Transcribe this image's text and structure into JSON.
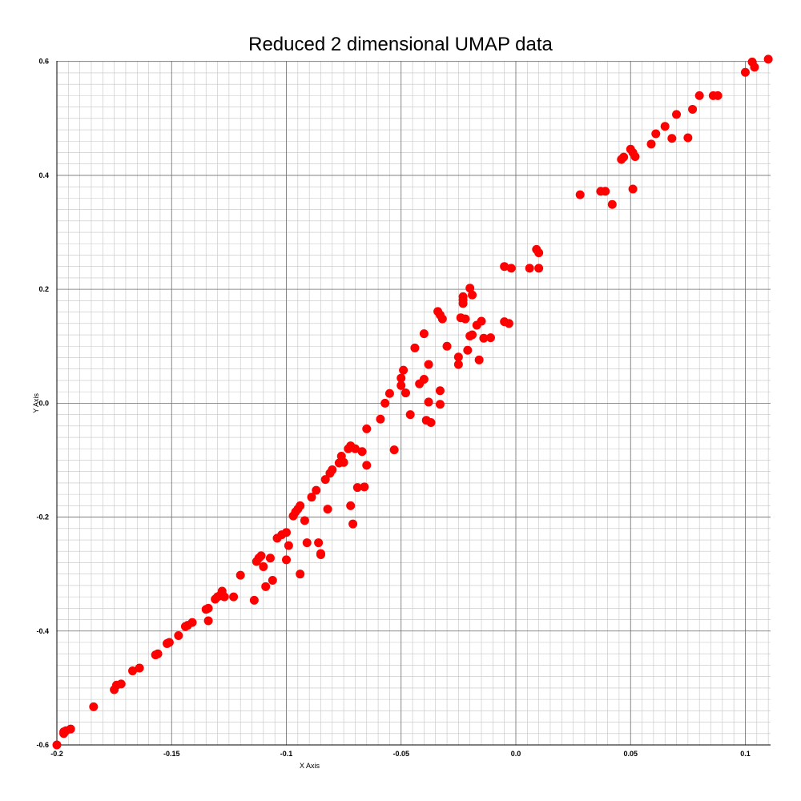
{
  "chart_data": {
    "type": "scatter",
    "title": "Reduced 2 dimensional UMAP data",
    "xlabel": "X Axis",
    "ylabel": "Y Axis",
    "xlim": [
      -0.2,
      0.111
    ],
    "ylim": [
      -0.6,
      0.601
    ],
    "x_ticks": [
      -0.2,
      -0.15,
      -0.1,
      -0.05,
      0.0,
      0.05,
      0.1
    ],
    "x_tick_labels": [
      "-0.2",
      "-0.15",
      "-0.1",
      "-0.05",
      "0.0",
      "0.05",
      "0.1"
    ],
    "y_ticks": [
      -0.6,
      -0.4,
      -0.2,
      0.0,
      0.2,
      0.4,
      0.6
    ],
    "y_tick_labels": [
      "-0.6",
      "-0.4",
      "-0.2",
      "0.0",
      "0.2",
      "0.4",
      "0.6"
    ],
    "grid": true,
    "marker_color": "#ff0000",
    "series": [
      {
        "x": [
          -0.2,
          -0.197,
          -0.197,
          -0.196,
          -0.194,
          -0.184,
          -0.175,
          -0.174,
          -0.172,
          -0.167,
          -0.164,
          -0.157,
          -0.156,
          -0.152,
          -0.151,
          -0.147,
          -0.144,
          -0.143,
          -0.141,
          -0.135,
          -0.134,
          -0.134,
          -0.131,
          -0.13,
          -0.129,
          -0.128,
          -0.127,
          -0.123,
          -0.12,
          -0.114,
          -0.113,
          -0.112,
          -0.111,
          -0.11,
          -0.109,
          -0.107,
          -0.106,
          -0.104,
          -0.102,
          -0.1,
          -0.1,
          -0.099,
          -0.097,
          -0.096,
          -0.095,
          -0.094,
          -0.094,
          -0.092,
          -0.091,
          -0.089,
          -0.087,
          -0.086,
          -0.085,
          -0.085,
          -0.083,
          -0.082,
          -0.081,
          -0.08,
          -0.077,
          -0.076,
          -0.075,
          -0.073,
          -0.072,
          -0.072,
          -0.071,
          -0.07,
          -0.069,
          -0.067,
          -0.066,
          -0.065,
          -0.065,
          -0.059,
          -0.057,
          -0.055,
          -0.053,
          -0.05,
          -0.05,
          -0.049,
          -0.048,
          -0.046,
          -0.044,
          -0.042,
          -0.04,
          -0.04,
          -0.039,
          -0.038,
          -0.038,
          -0.037,
          -0.034,
          -0.033,
          -0.033,
          -0.033,
          -0.032,
          -0.03,
          -0.025,
          -0.025,
          -0.024,
          -0.023,
          -0.023,
          -0.023,
          -0.022,
          -0.021,
          -0.02,
          -0.02,
          -0.019,
          -0.019,
          -0.017,
          -0.016,
          -0.015,
          -0.014,
          -0.011,
          -0.005,
          -0.005,
          -0.003,
          -0.002,
          0.006,
          0.009,
          0.01,
          0.01,
          0.028,
          0.037,
          0.039,
          0.042,
          0.046,
          0.047,
          0.05,
          0.051,
          0.051,
          0.052,
          0.059,
          0.061,
          0.065,
          0.068,
          0.07,
          0.075,
          0.077,
          0.08,
          0.086,
          0.088,
          0.1,
          0.103,
          0.104,
          0.11
        ],
        "y": [
          -0.6,
          -0.58,
          -0.577,
          -0.575,
          -0.572,
          -0.533,
          -0.503,
          -0.495,
          -0.493,
          -0.47,
          -0.465,
          -0.442,
          -0.44,
          -0.422,
          -0.42,
          -0.408,
          -0.392,
          -0.39,
          -0.385,
          -0.362,
          -0.382,
          -0.36,
          -0.344,
          -0.34,
          -0.338,
          -0.33,
          -0.34,
          -0.34,
          -0.302,
          -0.346,
          -0.278,
          -0.272,
          -0.268,
          -0.287,
          -0.322,
          -0.272,
          -0.311,
          -0.237,
          -0.231,
          -0.275,
          -0.227,
          -0.25,
          -0.198,
          -0.191,
          -0.186,
          -0.18,
          -0.3,
          -0.206,
          -0.245,
          -0.165,
          -0.153,
          -0.245,
          -0.264,
          -0.266,
          -0.134,
          -0.186,
          -0.123,
          -0.117,
          -0.105,
          -0.093,
          -0.104,
          -0.08,
          -0.075,
          -0.18,
          -0.212,
          -0.08,
          -0.148,
          -0.085,
          -0.147,
          -0.045,
          -0.109,
          -0.028,
          0.0,
          0.017,
          -0.082,
          0.031,
          0.044,
          0.058,
          0.018,
          -0.02,
          0.097,
          0.034,
          0.122,
          0.042,
          -0.03,
          0.068,
          0.002,
          -0.034,
          0.161,
          0.155,
          0.022,
          -0.002,
          0.148,
          0.1,
          0.068,
          0.081,
          0.15,
          0.175,
          0.181,
          0.187,
          0.148,
          0.093,
          0.118,
          0.202,
          0.19,
          0.12,
          0.137,
          0.076,
          0.144,
          0.114,
          0.115,
          0.24,
          0.143,
          0.14,
          0.237,
          0.237,
          0.27,
          0.237,
          0.264,
          0.366,
          0.372,
          0.372,
          0.349,
          0.428,
          0.432,
          0.446,
          0.376,
          0.44,
          0.433,
          0.455,
          0.473,
          0.486,
          0.465,
          0.507,
          0.466,
          0.516,
          0.54,
          0.54,
          0.54,
          0.581,
          0.599,
          0.59,
          0.604
        ]
      }
    ]
  }
}
